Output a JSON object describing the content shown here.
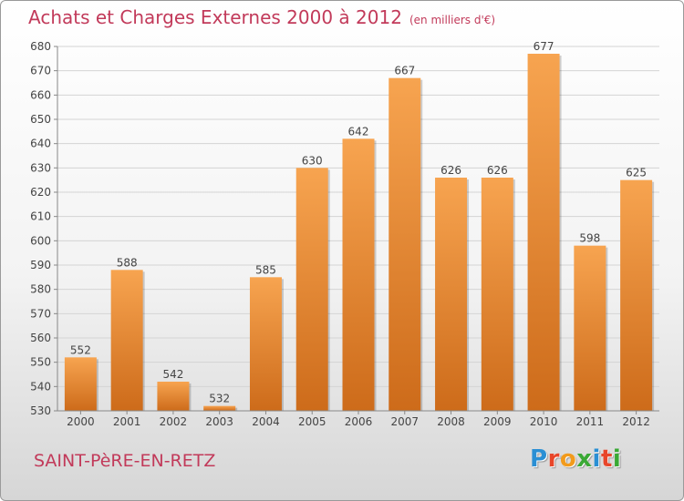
{
  "title": "Achats et Charges Externes 2000 à 2012",
  "subtitle": "(en milliers d'€)",
  "commune": "SAINT-PèRE-EN-RETZ",
  "logo": {
    "text": "Proxiti",
    "letters": [
      {
        "ch": "P",
        "color": "#2a8fd4"
      },
      {
        "ch": "r",
        "color": "#e8462a"
      },
      {
        "ch": "o",
        "color": "#f29b1c"
      },
      {
        "ch": "x",
        "color": "#3aa935"
      },
      {
        "ch": "i",
        "color": "#2a8fd4"
      },
      {
        "ch": "t",
        "color": "#e8462a"
      },
      {
        "ch": "i",
        "color": "#3aa935"
      }
    ]
  },
  "colors": {
    "title": "#c23a5a",
    "bar_light": "#f7a450",
    "bar_dark": "#cd6b1a",
    "grid": "#d4d4d4",
    "axis": "#888888"
  },
  "chart_data": {
    "type": "bar",
    "categories": [
      "2000",
      "2001",
      "2002",
      "2003",
      "2004",
      "2005",
      "2006",
      "2007",
      "2008",
      "2009",
      "2010",
      "2011",
      "2012"
    ],
    "values": [
      552,
      588,
      542,
      532,
      585,
      630,
      642,
      667,
      626,
      626,
      677,
      598,
      625
    ],
    "ylim": [
      530,
      680
    ],
    "yticks": [
      530,
      540,
      550,
      560,
      570,
      580,
      590,
      600,
      610,
      620,
      630,
      640,
      650,
      660,
      670,
      680
    ],
    "grid": true,
    "data_labels": true
  }
}
